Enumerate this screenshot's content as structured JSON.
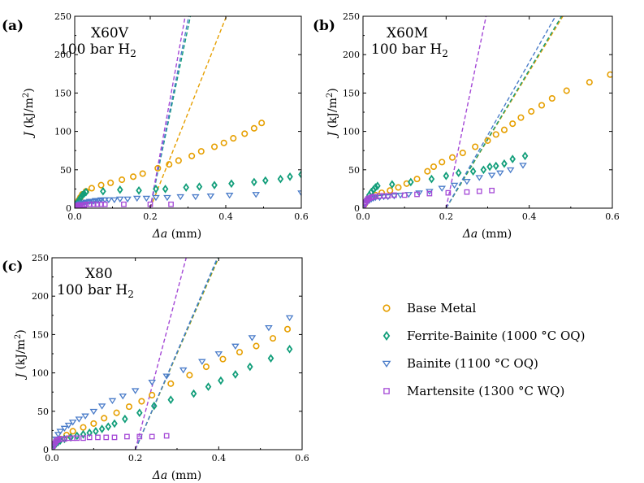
{
  "colors": {
    "base_metal": "#E69F00",
    "ferrite_bainite": "#129E7A",
    "bainite": "#4A7CC9",
    "martensite": "#A448D6"
  },
  "legend": [
    {
      "name": "Base Metal",
      "marker": "circle",
      "color_key": "base_metal"
    },
    {
      "name": "Ferrite-Bainite (1000 °C OQ)",
      "marker": "diamond",
      "color_key": "ferrite_bainite"
    },
    {
      "name": "Bainite (1100 °C OQ)",
      "marker": "triangle-down",
      "color_key": "bainite"
    },
    {
      "name": "Martensite (1300 °C WQ)",
      "marker": "square",
      "color_key": "martensite"
    }
  ],
  "chart_data": [
    {
      "type": "scatter",
      "panel_label": "(a)",
      "annotation_line1": "X60V",
      "annotation_line2_main": "100 bar H",
      "annotation_line2_sub": "2",
      "xlabel_italic": "Δa",
      "xlabel_unit": " (mm)",
      "ylabel_italic": "J",
      "ylabel_unit": " (kJ/m",
      "ylabel_sup": "2",
      "ylabel_close": ")",
      "xlim": [
        0,
        0.6
      ],
      "ylim": [
        0,
        250
      ],
      "xticks": [
        "0.0",
        "0.2",
        "0.4",
        "0.6"
      ],
      "yticks": [
        "0",
        "50",
        "100",
        "150",
        "200",
        "250"
      ],
      "series": [
        {
          "name": "Base Metal",
          "x": [
            0.0,
            0.005,
            0.01,
            0.015,
            0.02,
            0.03,
            0.045,
            0.07,
            0.095,
            0.125,
            0.155,
            0.18,
            0.22,
            0.25,
            0.275,
            0.31,
            0.335,
            0.37,
            0.395,
            0.42,
            0.45,
            0.475,
            0.495
          ],
          "y": [
            2,
            6,
            10,
            14,
            18,
            22,
            26,
            30,
            33,
            37,
            41,
            45,
            52,
            57,
            62,
            68,
            74,
            80,
            85,
            91,
            97,
            104,
            111
          ]
        },
        {
          "name": "Ferrite-Bainite (1000 °C OQ)",
          "x": [
            0.0,
            0.004,
            0.008,
            0.012,
            0.016,
            0.02,
            0.025,
            0.03,
            0.075,
            0.12,
            0.17,
            0.215,
            0.24,
            0.295,
            0.33,
            0.37,
            0.415,
            0.475,
            0.505,
            0.545,
            0.57,
            0.6
          ],
          "y": [
            2,
            5,
            8,
            11,
            14,
            17,
            19,
            21,
            22,
            24,
            23,
            25,
            25,
            27,
            28,
            30,
            32,
            34,
            36,
            38,
            41,
            44
          ]
        },
        {
          "name": "Bainite (1100 °C OQ)",
          "x": [
            0.0,
            0.005,
            0.01,
            0.015,
            0.02,
            0.025,
            0.03,
            0.035,
            0.04,
            0.045,
            0.05,
            0.055,
            0.06,
            0.065,
            0.07,
            0.08,
            0.09,
            0.105,
            0.12,
            0.14,
            0.165,
            0.19,
            0.215,
            0.245,
            0.28,
            0.32,
            0.36,
            0.41,
            0.48,
            0.6
          ],
          "y": [
            2,
            4,
            5,
            6,
            7,
            7,
            8,
            8,
            9,
            9,
            9,
            10,
            10,
            10,
            11,
            11,
            11,
            11,
            12,
            12,
            13,
            13,
            14,
            14,
            15,
            15,
            16,
            17,
            18,
            20
          ]
        },
        {
          "name": "Martensite (1300 °C WQ)",
          "x": [
            0.0,
            0.003,
            0.006,
            0.009,
            0.012,
            0.015,
            0.02,
            0.025,
            0.03,
            0.04,
            0.05,
            0.06,
            0.07,
            0.08,
            0.13,
            0.2,
            0.255
          ],
          "y": [
            1,
            2,
            3,
            3,
            4,
            4,
            4,
            4,
            5,
            5,
            5,
            5,
            5,
            5,
            5,
            5,
            5
          ]
        }
      ],
      "blunting_lines": [
        {
          "color_key": "base_metal",
          "x0": 0.2,
          "slope": 1240
        },
        {
          "color_key": "ferrite_bainite",
          "x0": 0.2,
          "slope": 2350
        },
        {
          "color_key": "bainite",
          "x0": 0.2,
          "slope": 2450
        },
        {
          "color_key": "martensite",
          "x0": 0.2,
          "slope": 2700
        }
      ]
    },
    {
      "type": "scatter",
      "panel_label": "(b)",
      "annotation_line1": "X60M",
      "annotation_line2_main": "100 bar H",
      "annotation_line2_sub": "2",
      "xlabel_italic": "Δa",
      "xlabel_unit": " (mm)",
      "ylabel_italic": "J",
      "ylabel_unit": " (kJ/m",
      "ylabel_sup": "2",
      "ylabel_close": ")",
      "xlim": [
        0,
        0.6
      ],
      "ylim": [
        0,
        250
      ],
      "xticks": [
        "0.0",
        "0.2",
        "0.4",
        "0.6"
      ],
      "yticks": [
        "0",
        "50",
        "100",
        "150",
        "200",
        "250"
      ],
      "series": [
        {
          "name": "Base Metal",
          "x": [
            0.0,
            0.005,
            0.01,
            0.02,
            0.03,
            0.045,
            0.065,
            0.085,
            0.105,
            0.13,
            0.155,
            0.17,
            0.19,
            0.215,
            0.24,
            0.27,
            0.3,
            0.32,
            0.34,
            0.36,
            0.38,
            0.405,
            0.43,
            0.455,
            0.49,
            0.545,
            0.595
          ],
          "y": [
            2,
            6,
            10,
            14,
            17,
            20,
            23,
            27,
            32,
            38,
            48,
            54,
            60,
            66,
            72,
            80,
            88,
            96,
            102,
            110,
            118,
            126,
            134,
            143,
            153,
            164,
            174
          ]
        },
        {
          "name": "Ferrite-Bainite (1000 °C OQ)",
          "x": [
            0.0,
            0.005,
            0.01,
            0.015,
            0.02,
            0.025,
            0.03,
            0.035,
            0.07,
            0.115,
            0.165,
            0.2,
            0.23,
            0.265,
            0.29,
            0.305,
            0.32,
            0.34,
            0.36,
            0.39
          ],
          "y": [
            2,
            7,
            12,
            17,
            21,
            24,
            27,
            29,
            31,
            34,
            38,
            42,
            46,
            48,
            50,
            54,
            55,
            58,
            64,
            68
          ]
        },
        {
          "name": "Bainite (1100 °C OQ)",
          "x": [
            0.0,
            0.005,
            0.01,
            0.015,
            0.02,
            0.025,
            0.03,
            0.04,
            0.05,
            0.06,
            0.075,
            0.09,
            0.11,
            0.135,
            0.16,
            0.19,
            0.22,
            0.25,
            0.28,
            0.31,
            0.33,
            0.355,
            0.385
          ],
          "y": [
            2,
            5,
            8,
            10,
            12,
            13,
            14,
            14,
            15,
            15,
            16,
            17,
            18,
            20,
            22,
            26,
            30,
            35,
            40,
            43,
            46,
            50,
            56
          ]
        },
        {
          "name": "Martensite (1300 °C WQ)",
          "x": [
            0.0,
            0.003,
            0.006,
            0.009,
            0.012,
            0.015,
            0.02,
            0.025,
            0.03,
            0.04,
            0.05,
            0.06,
            0.075,
            0.1,
            0.13,
            0.16,
            0.205,
            0.25,
            0.28,
            0.31
          ],
          "y": [
            2,
            5,
            8,
            10,
            12,
            13,
            14,
            15,
            15,
            16,
            16,
            16,
            17,
            17,
            18,
            19,
            20,
            21,
            22,
            23
          ]
        }
      ],
      "blunting_lines": [
        {
          "color_key": "base_metal",
          "x0": 0.2,
          "slope": 890
        },
        {
          "color_key": "ferrite_bainite",
          "x0": 0.2,
          "slope": 900
        },
        {
          "color_key": "bainite",
          "x0": 0.2,
          "slope": 950
        },
        {
          "color_key": "martensite",
          "x0": 0.2,
          "slope": 2600
        }
      ]
    },
    {
      "type": "scatter",
      "panel_label": "(c)",
      "annotation_line1": "X80",
      "annotation_line2_main": "100 bar H",
      "annotation_line2_sub": "2",
      "xlabel_italic": "Δa",
      "xlabel_unit": " (mm)",
      "ylabel_italic": "J",
      "ylabel_unit": " (kJ/m",
      "ylabel_sup": "2",
      "ylabel_close": ")",
      "xlim": [
        0,
        0.6
      ],
      "ylim": [
        0,
        250
      ],
      "xticks": [
        "0.0",
        "0.2",
        "0.4",
        "0.6"
      ],
      "yticks": [
        "0",
        "50",
        "100",
        "150",
        "200",
        "250"
      ],
      "series": [
        {
          "name": "Base Metal",
          "x": [
            0.0,
            0.005,
            0.01,
            0.02,
            0.035,
            0.05,
            0.075,
            0.1,
            0.125,
            0.155,
            0.185,
            0.215,
            0.24,
            0.285,
            0.33,
            0.37,
            0.41,
            0.45,
            0.49,
            0.53,
            0.565
          ],
          "y": [
            2,
            6,
            10,
            14,
            19,
            24,
            29,
            34,
            41,
            48,
            56,
            63,
            71,
            86,
            97,
            108,
            118,
            127,
            135,
            145,
            157
          ]
        },
        {
          "name": "Ferrite-Bainite (1000 °C OQ)",
          "x": [
            0.0,
            0.005,
            0.01,
            0.015,
            0.02,
            0.03,
            0.045,
            0.06,
            0.075,
            0.09,
            0.105,
            0.12,
            0.135,
            0.15,
            0.175,
            0.21,
            0.245,
            0.285,
            0.34,
            0.375,
            0.405,
            0.44,
            0.475,
            0.525,
            0.57
          ],
          "y": [
            2,
            5,
            8,
            10,
            12,
            14,
            16,
            18,
            20,
            22,
            24,
            27,
            30,
            34,
            40,
            48,
            57,
            65,
            73,
            82,
            90,
            98,
            108,
            119,
            131
          ]
        },
        {
          "name": "Bainite (1100 °C OQ)",
          "x": [
            0.0,
            0.005,
            0.01,
            0.015,
            0.02,
            0.03,
            0.04,
            0.05,
            0.065,
            0.08,
            0.1,
            0.12,
            0.145,
            0.17,
            0.2,
            0.24,
            0.275,
            0.315,
            0.36,
            0.4,
            0.44,
            0.48,
            0.52,
            0.57
          ],
          "y": [
            2,
            8,
            14,
            20,
            24,
            28,
            32,
            36,
            40,
            44,
            50,
            57,
            64,
            70,
            77,
            88,
            96,
            104,
            115,
            125,
            135,
            146,
            159,
            172
          ]
        },
        {
          "name": "Martensite (1300 °C WQ)",
          "x": [
            0.0,
            0.003,
            0.006,
            0.009,
            0.012,
            0.015,
            0.02,
            0.025,
            0.03,
            0.04,
            0.05,
            0.06,
            0.075,
            0.09,
            0.11,
            0.13,
            0.15,
            0.18,
            0.21,
            0.24,
            0.275
          ],
          "y": [
            2,
            5,
            8,
            10,
            12,
            13,
            14,
            14,
            14,
            15,
            15,
            15,
            15,
            16,
            16,
            16,
            16,
            17,
            17,
            17,
            18
          ]
        }
      ],
      "blunting_lines": [
        {
          "color_key": "base_metal",
          "x0": 0.2,
          "slope": 1250
        },
        {
          "color_key": "ferrite_bainite",
          "x0": 0.2,
          "slope": 1260
        },
        {
          "color_key": "bainite",
          "x0": 0.2,
          "slope": 1270
        },
        {
          "color_key": "martensite",
          "x0": 0.2,
          "slope": 2050
        }
      ]
    }
  ]
}
